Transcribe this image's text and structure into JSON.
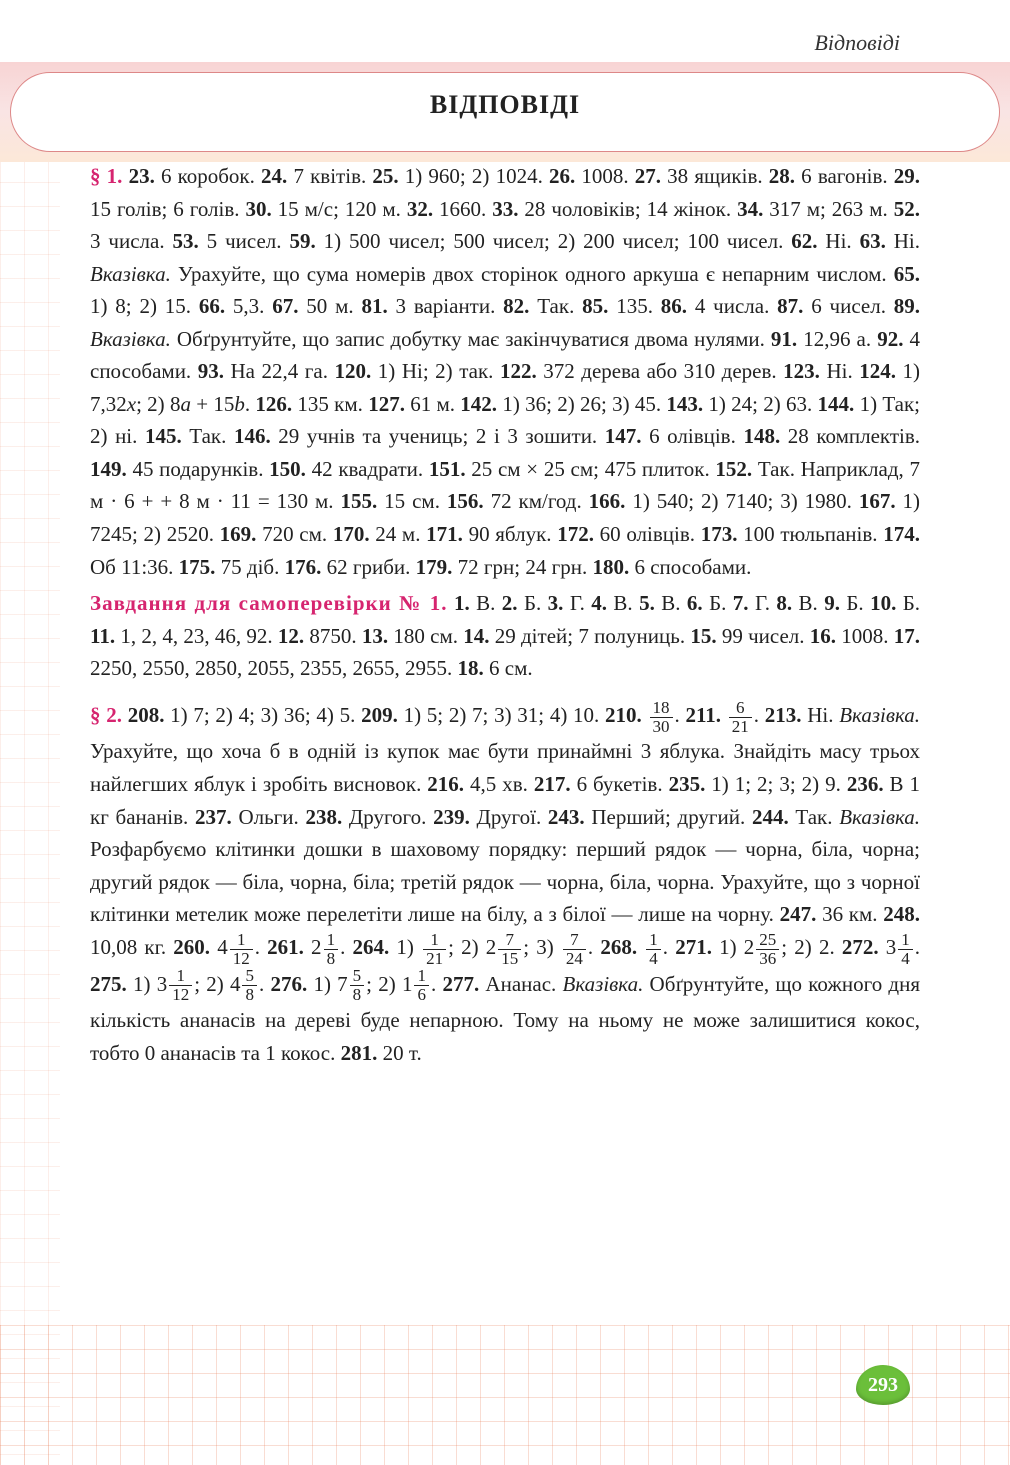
{
  "running_head": "Відповіді",
  "title": "ВІДПОВІДІ",
  "page_number": "293",
  "sections": {
    "s1": {
      "mark": "§ 1.",
      "body": "<b>23.</b> 6 коробок. <b>24.</b> 7 квітів. <b>25.</b> 1) 960; 2) 1024. <b>26.</b> 1008. <b>27.</b> 38 ящиків. <b>28.</b> 6 вагонів. <b>29.</b> 15 голів; 6 голів. <b>30.</b> 15 м/с; 120 м. <b>32.</b> 1660. <b>33.</b> 28 чоловіків; 14 жінок. <b>34.</b> 317 м; 263 м. <b>52.</b> 3 числа. <b>53.</b> 5 чисел. <b>59.</b> 1) 500 чисел; 500 чисел; 2) 200 чисел; 100 чисел. <b>62.</b> Ні. <b>63.</b> Ні. <i>Вказівка.</i> Урахуйте, що сума номерів двох сторінок одного аркуша є непарним числом. <b>65.</b> 1) 8; 2) 15. <b>66.</b> 5,3. <b>67.</b> 50 м. <b>81.</b> 3 варіанти. <b>82.</b> Так. <b>85.</b> 135. <b>86.</b> 4 числа. <b>87.</b> 6 чисел. <b>89.</b> <i>Вказівка.</i> Обґрунтуйте, що запис добутку має закінчуватися двома нулями. <b>91.</b> 12,96 а. <b>92.</b> 4 способами. <b>93.</b> На 22,4 га. <b>120.</b> 1) Ні; 2) так. <b>122.</b> 372 дерева або 310 дерев. <b>123.</b> Ні. <b>124.</b> 1) 7,32<i>x</i>; 2) 8<i>a</i> + 15<i>b</i>. <b>126.</b> 135 км. <b>127.</b> 61 м. <b>142.</b> 1) 36; 2) 26; 3) 45. <b>143.</b> 1) 24; 2) 63. <b>144.</b> 1) Так; 2) ні. <b>145.</b> Так. <b>146.</b> 29 учнів та учениць; 2 і 3 зошити. <b>147.</b> 6 олівців. <b>148.</b> 28 комплектів. <b>149.</b> 45 подарунків. <b>150.</b> 42 квадрати. <b>151.</b> 25 см × 25 см; 475 плиток. <b>152.</b> Так. Наприклад, 7 м · 6 + + 8 м · 11 = 130 м. <b>155.</b> 15 см. <b>156.</b> 72 км/год. <b>166.</b> 1) 540; 2) 7140; 3) 1980. <b>167.</b> 1) 7245; 2) 2520. <b>169.</b> 720 см. <b>170.</b> 24 м. <b>171.</b> 90 яблук. <b>172.</b> 60 олівців. <b>173.</b> 100 тюльпанів. <b>174.</b> Об 11:36. <b>175.</b> 75 діб. <b>176.</b> 62 гриби. <b>179.</b> 72 грн; 24 грн. <b>180.</b> 6 способами."
    },
    "selfcheck": {
      "mark": "Завдання для самоперевірки № 1.",
      "body": "<b>1.</b> В. <b>2.</b> Б. <b>3.</b> Г. <b>4.</b> В. <b>5.</b> В. <b>6.</b> Б. <b>7.</b> Г. <b>8.</b> В. <b>9.</b> Б. <b>10.</b> Б. <b>11.</b> 1, 2, 4, 23, 46, 92. <b>12.</b> 8750. <b>13.</b> 180 см. <b>14.</b> 29 дітей; 7 полуниць. <b>15.</b> 99 чисел. <b>16.</b> 1008. <b>17.</b> 2250, 2550, 2850, 2055, 2355, 2655, 2955. <b>18.</b> 6 см."
    },
    "s2": {
      "mark": "§ 2.",
      "body_parts": [
        "<b>208.</b> 1) 7; 2) 4; 3) 36; 4) 5. <b>209.</b> 1) 5; 2) 7; 3) 31; 4) 10. <b>210.</b> ",
        {
          "frac": [
            "18",
            "30"
          ]
        },
        ". <b>211.</b> ",
        {
          "frac": [
            "6",
            "21"
          ]
        },
        ". <b>213.</b> Ні. <i>Вказівка.</i> Урахуйте, що хоча б в одній із купок має бути принаймні 3 яблука. Знайдіть масу трьох найлегших яблук і зробіть висновок. <b>216.</b> 4,5 хв. <b>217.</b> 6 букетів. <b>235.</b> 1) 1; 2; 3; 2) 9. <b>236.</b> В 1 кг бананів. <b>237.</b> Ольги. <b>238.</b> Другого. <b>239.</b> Другої. <b>243.</b> Перший; другий. <b>244.</b> Так. <i>Вказівка.</i> Розфарбуємо клітинки дошки в шаховому порядку: перший рядок — чорна, біла, чорна; другий рядок — біла, чорна, біла; третій рядок — чорна, біла, чорна. Урахуйте, що з чорної клітинки метелик може перелетіти лише на білу, а з білої — лише на чорну. <b>247.</b> 36 км. <b>248.</b> 10,08 кг. <b>260.</b> 4",
        {
          "frac": [
            "1",
            "12"
          ]
        },
        ". <b>261.</b> 2",
        {
          "frac": [
            "1",
            "8"
          ]
        },
        ". <b>264.</b> 1) ",
        {
          "frac": [
            "1",
            "21"
          ]
        },
        "; 2) 2",
        {
          "frac": [
            "7",
            "15"
          ]
        },
        "; 3) ",
        {
          "frac": [
            "7",
            "24"
          ]
        },
        ". <b>268.</b> ",
        {
          "frac": [
            "1",
            "4"
          ]
        },
        ". <b>271.</b> 1) 2",
        {
          "frac": [
            "25",
            "36"
          ]
        },
        "; 2) 2. <b>272.</b> 3",
        {
          "frac": [
            "1",
            "4"
          ]
        },
        ". <b>275.</b> 1) 3",
        {
          "frac": [
            "1",
            "12"
          ]
        },
        "; 2) 4",
        {
          "frac": [
            "5",
            "8"
          ]
        },
        ". <b>276.</b> 1) 7",
        {
          "frac": [
            "5",
            "8"
          ]
        },
        "; 2) 1",
        {
          "frac": [
            "1",
            "6"
          ]
        },
        ". <b>277.</b> Ананас. <i>Вказівка.</i> Обґрунтуйте, що кожного дня кількість ананасів на дереві буде непарною. Тому на ньому не може залишитися кокос, тобто 0 ананасів та 1 кокос. <b>281.</b> 20 т."
      ]
    }
  }
}
